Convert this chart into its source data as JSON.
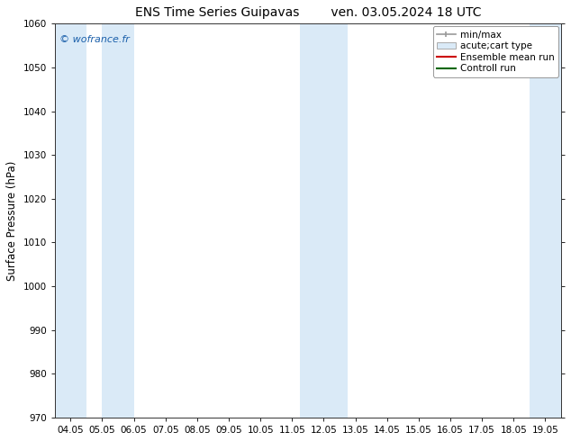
{
  "title_left": "ENS Time Series Guipavas",
  "title_right": "ven. 03.05.2024 18 UTC",
  "ylabel": "Surface Pressure (hPa)",
  "ylim": [
    970,
    1060
  ],
  "yticks": [
    970,
    980,
    990,
    1000,
    1010,
    1020,
    1030,
    1040,
    1050,
    1060
  ],
  "xtick_labels": [
    "04.05",
    "05.05",
    "06.05",
    "07.05",
    "08.05",
    "09.05",
    "10.05",
    "11.05",
    "12.05",
    "13.05",
    "14.05",
    "15.05",
    "16.05",
    "17.05",
    "18.05",
    "19.05"
  ],
  "xtick_positions": [
    0,
    1,
    2,
    3,
    4,
    5,
    6,
    7,
    8,
    9,
    10,
    11,
    12,
    13,
    14,
    15
  ],
  "xlim": [
    -0.5,
    15.5
  ],
  "shaded_bands": [
    {
      "xmin": -0.5,
      "xmax": 0.5,
      "color": "#daeaf7"
    },
    {
      "xmin": 1.0,
      "xmax": 2.0,
      "color": "#daeaf7"
    },
    {
      "xmin": 7.25,
      "xmax": 8.75,
      "color": "#daeaf7"
    },
    {
      "xmin": 14.5,
      "xmax": 15.5,
      "color": "#daeaf7"
    }
  ],
  "watermark": "© wofrance.fr",
  "watermark_color": "#1a5faa",
  "bg_color": "#ffffff",
  "plot_bg": "#ffffff",
  "tick_fontsize": 7.5,
  "label_fontsize": 8.5,
  "title_fontsize": 10,
  "legend_fontsize": 7.5
}
